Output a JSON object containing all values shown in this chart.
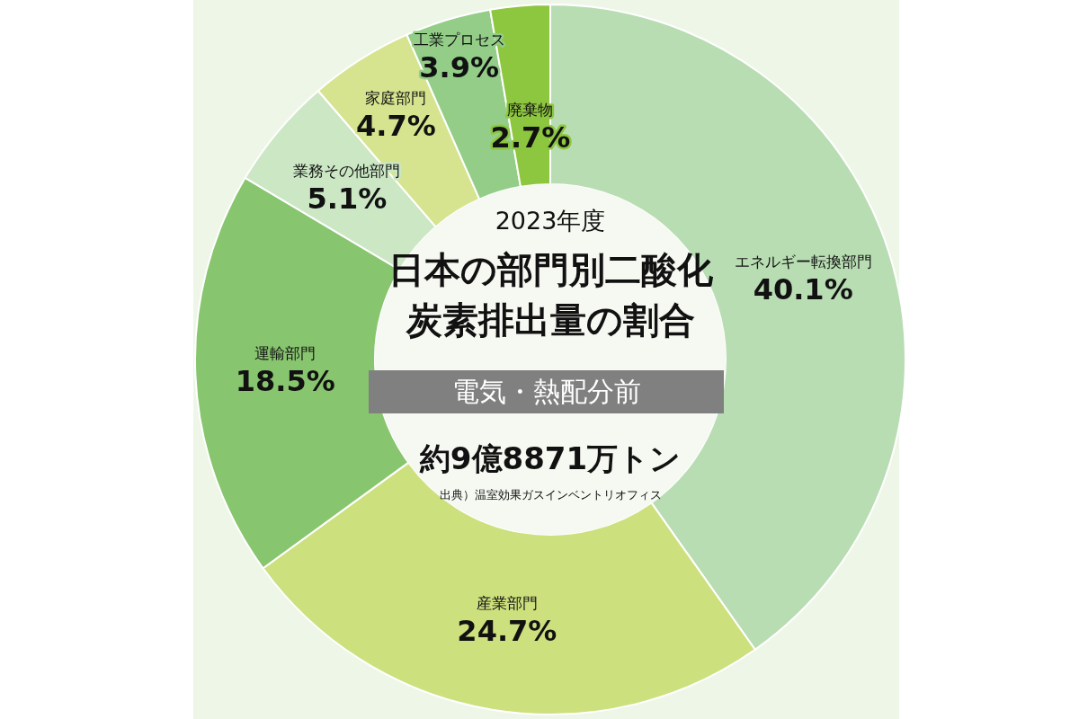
{
  "chart_data": {
    "type": "donut",
    "title": "日本の部門別二酸化炭素排出量の割合",
    "subtitle": "電気・熱配分前",
    "categories": [
      "エネルギー転換部門",
      "産業部門",
      "運輸部門",
      "業務その他部門",
      "家庭部門",
      "工業プロセス",
      "廃棄物"
    ],
    "values": [
      40.1,
      24.7,
      18.5,
      5.1,
      4.7,
      3.9,
      2.7
    ],
    "colors": [
      "#b9ddb3",
      "#cde07e",
      "#88c56f",
      "#cbe7c4",
      "#d6e48f",
      "#93cd88",
      "#8dc63f"
    ],
    "value_labels": [
      "40.1%",
      "24.7%",
      "18.5%",
      "5.1%",
      "4.7%",
      "3.9%",
      "2.7%"
    ],
    "annotations": [
      "2023年度",
      "約9億8871万トン",
      "出典）温室効果ガスインベントリオフィス"
    ]
  }
}
